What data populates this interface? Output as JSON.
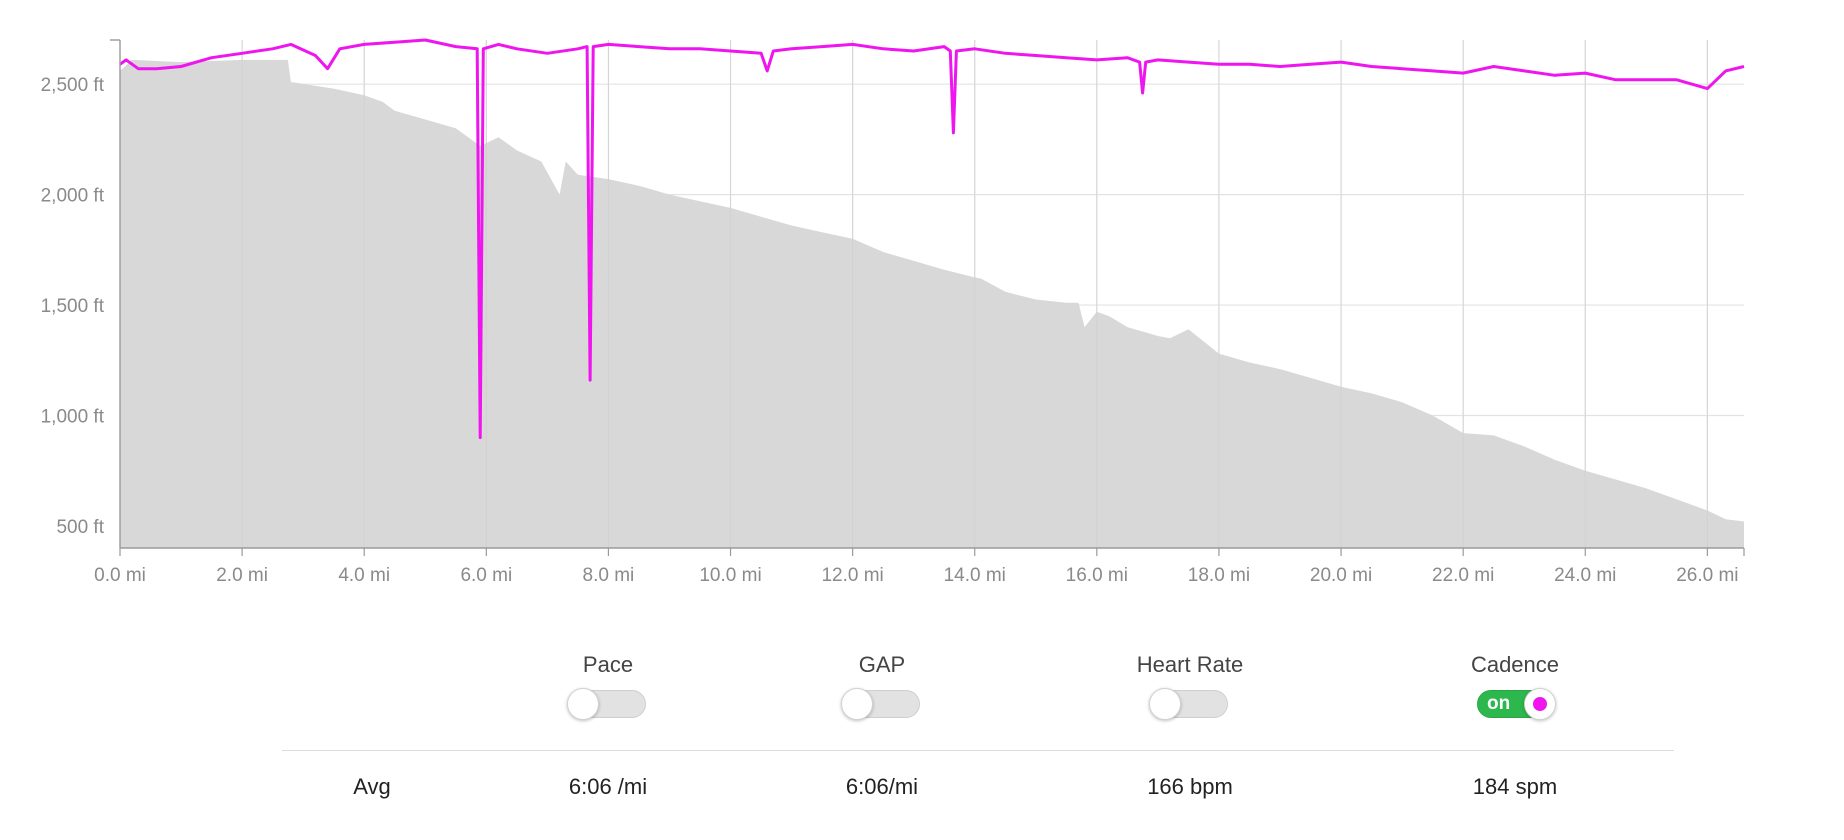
{
  "chart_data": {
    "type": "area",
    "xlabel": "",
    "ylabel": "",
    "x_unit": "mi",
    "xlim": [
      0,
      26.6
    ],
    "x_ticks": [
      "0.0 mi",
      "2.0 mi",
      "4.0 mi",
      "6.0 mi",
      "8.0 mi",
      "10.0 mi",
      "12.0 mi",
      "14.0 mi",
      "16.0 mi",
      "18.0 mi",
      "20.0 mi",
      "22.0 mi",
      "24.0 mi",
      "26.0 mi"
    ],
    "ylim": [
      400,
      2700
    ],
    "y_ticks": [
      "500 ft",
      "1,000 ft",
      "1,500 ft",
      "2,000 ft",
      "2,500 ft"
    ],
    "grid": true,
    "series": [
      {
        "kind": "area",
        "color": "#d8d8d8",
        "x": [
          0,
          0.2,
          1.0,
          2.0,
          2.75,
          2.8,
          3.5,
          4.0,
          4.3,
          4.5,
          5.0,
          5.5,
          5.9,
          6.2,
          6.5,
          6.9,
          7.2,
          7.3,
          7.5,
          8.0,
          8.5,
          9.0,
          9.5,
          10.0,
          10.5,
          11.0,
          11.5,
          12.0,
          12.5,
          13.0,
          13.5,
          14.0,
          14.1,
          14.5,
          15.0,
          15.5,
          15.7,
          15.8,
          16.0,
          16.2,
          16.5,
          17.0,
          17.2,
          17.5,
          18.0,
          18.5,
          19.0,
          19.5,
          20.0,
          20.5,
          21.0,
          21.5,
          22.0,
          22.5,
          23.0,
          23.5,
          24.0,
          24.5,
          25.0,
          25.5,
          26.0,
          26.3,
          26.6
        ],
        "y": [
          2560,
          2610,
          2600,
          2610,
          2610,
          2510,
          2480,
          2450,
          2420,
          2380,
          2340,
          2300,
          2220,
          2260,
          2200,
          2150,
          2000,
          2150,
          2090,
          2070,
          2040,
          2000,
          1970,
          1940,
          1900,
          1860,
          1830,
          1800,
          1740,
          1700,
          1660,
          1625,
          1620,
          1560,
          1525,
          1510,
          1510,
          1400,
          1470,
          1450,
          1400,
          1360,
          1350,
          1390,
          1280,
          1240,
          1210,
          1170,
          1130,
          1100,
          1060,
          1000,
          920,
          910,
          860,
          800,
          750,
          710,
          670,
          620,
          570,
          530,
          520
        ]
      },
      {
        "kind": "line",
        "name": "Cadence",
        "color": "#ee15ee",
        "x": [
          0,
          0.1,
          0.3,
          0.6,
          1.0,
          1.5,
          2.0,
          2.5,
          2.8,
          3.2,
          3.4,
          3.6,
          4.0,
          4.5,
          5.0,
          5.5,
          5.85,
          5.9,
          5.95,
          6.2,
          6.5,
          7.0,
          7.5,
          7.65,
          7.7,
          7.75,
          8.0,
          8.5,
          9.0,
          9.5,
          10.0,
          10.5,
          10.6,
          10.7,
          11.0,
          11.5,
          12.0,
          12.5,
          13.0,
          13.5,
          13.6,
          13.65,
          13.7,
          14.0,
          14.5,
          15.0,
          15.5,
          16.0,
          16.5,
          16.7,
          16.75,
          16.8,
          17.0,
          17.5,
          18.0,
          18.5,
          19.0,
          19.5,
          20.0,
          20.5,
          21.0,
          21.5,
          22.0,
          22.5,
          23.0,
          23.5,
          24.0,
          24.5,
          25.0,
          25.5,
          26.0,
          26.3,
          26.6
        ],
        "y": [
          2590,
          2610,
          2570,
          2570,
          2580,
          2620,
          2640,
          2660,
          2680,
          2630,
          2570,
          2660,
          2680,
          2690,
          2700,
          2670,
          2660,
          900,
          2660,
          2680,
          2660,
          2640,
          2660,
          2670,
          1160,
          2670,
          2680,
          2670,
          2660,
          2660,
          2650,
          2640,
          2560,
          2650,
          2660,
          2670,
          2680,
          2660,
          2650,
          2670,
          2650,
          2280,
          2650,
          2660,
          2640,
          2630,
          2620,
          2610,
          2620,
          2600,
          2460,
          2600,
          2610,
          2600,
          2590,
          2590,
          2580,
          2590,
          2600,
          2580,
          2570,
          2560,
          2550,
          2580,
          2560,
          2540,
          2550,
          2520,
          2520,
          2520,
          2480,
          2560,
          2580
        ]
      }
    ]
  },
  "controls": [
    {
      "label": "Pace",
      "state": "off",
      "avg": "6:06 /mi"
    },
    {
      "label": "GAP",
      "state": "off",
      "avg": "6:06/mi"
    },
    {
      "label": "Heart Rate",
      "state": "off",
      "avg": "166 bpm"
    },
    {
      "label": "Cadence",
      "state": "on",
      "on_text": "on",
      "avg": "184 spm"
    }
  ],
  "avg_label": "Avg"
}
